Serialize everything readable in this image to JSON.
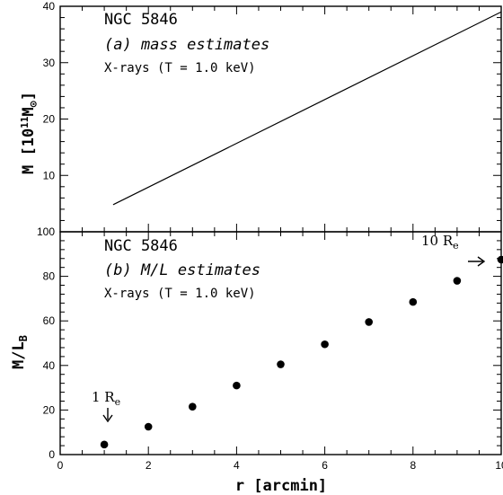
{
  "chart_data": [
    {
      "type": "line",
      "title": "NGC 5846",
      "subtitle": "(a) mass estimates",
      "note": "X-rays (T =  1.0 keV)",
      "ylabel_main": "M  [10",
      "ylabel_sup": "11",
      "ylabel_after": "M",
      "ylabel_sub": "⊙",
      "ylabel_close": "]",
      "xlim": [
        0,
        10
      ],
      "ylim": [
        0,
        40
      ],
      "yticks": [
        "10",
        "20",
        "30",
        "40"
      ],
      "grid": false,
      "series": [
        {
          "x": [
            1.2,
            10.0
          ],
          "y": [
            4.8,
            39.0
          ]
        }
      ]
    },
    {
      "type": "scatter",
      "title": "NGC 5846",
      "subtitle": "(b) M/L estimates",
      "note": "X-rays (T =  1.0 keV)",
      "xlabel": "r [arcmin]",
      "ylabel_main": "M/L",
      "ylabel_sub": "B",
      "xlim": [
        0,
        10
      ],
      "ylim": [
        0,
        100
      ],
      "xticks": [
        "0",
        "2",
        "4",
        "6",
        "8",
        "10"
      ],
      "yticks": [
        "0",
        "20",
        "40",
        "60",
        "80",
        "100"
      ],
      "grid": false,
      "series": [
        {
          "x": [
            1,
            2,
            3,
            4,
            5,
            6,
            7,
            8,
            9,
            10
          ],
          "y": [
            4.5,
            12.5,
            21.5,
            31,
            40.5,
            49.5,
            59.5,
            68.5,
            78,
            87.5
          ]
        }
      ],
      "annotations": [
        {
          "text": "1  R",
          "sub": "e",
          "arrow": "down",
          "x": 1
        },
        {
          "text": "10  R",
          "sub": "e",
          "arrow": "right",
          "x": 10
        }
      ]
    }
  ]
}
